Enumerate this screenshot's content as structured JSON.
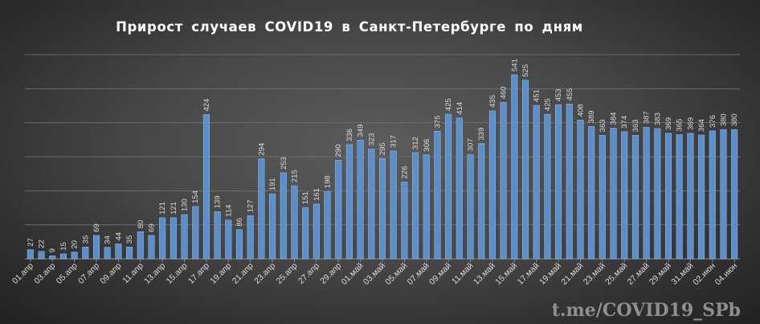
{
  "chart_data": {
    "type": "bar",
    "title": "Прирост случаев COVID19 в Санкт-Петербурге по дням",
    "watermark": "t.me/COVID19_SPb",
    "colors": {
      "bar": "#5b8fcb",
      "background": "#474747",
      "text": "#ffffff"
    },
    "grid": true,
    "ylim": [
      0,
      600
    ],
    "categories": [
      "01.апр",
      "02.апр",
      "03.апр",
      "04.апр",
      "05.апр",
      "06.апр",
      "07.апр",
      "08.апр",
      "09.апр",
      "10.апр",
      "11.апр",
      "12.апр",
      "13.апр",
      "14.апр",
      "15.апр",
      "16.апр",
      "17.апр",
      "18.апр",
      "19.апр",
      "20.апр",
      "21.апр",
      "22.апр",
      "23.апр",
      "24.апр",
      "25.апр",
      "26.апр",
      "27.апр",
      "28.апр",
      "29.апр",
      "30.апр",
      "01.май",
      "02.май",
      "03.май",
      "04.май",
      "05.май",
      "06.май",
      "07.май",
      "08.май",
      "09.май",
      "10.май",
      "11.май",
      "12.май",
      "13.май",
      "14.май",
      "15.май",
      "16.май",
      "17.май",
      "18.май",
      "19.май",
      "20.май",
      "21.май",
      "22.май",
      "23.май",
      "24.май",
      "25.май",
      "26.май",
      "27.май",
      "28.май",
      "29.май",
      "30.май",
      "31.май",
      "01.июн",
      "02.июн",
      "03.июн",
      "04.июн"
    ],
    "tick_labels": [
      "01.апр",
      "03.апр",
      "05.апр",
      "07.апр",
      "09.апр",
      "11.апр",
      "13.апр",
      "15.апр",
      "17.апр",
      "19.апр",
      "21.апр",
      "23.апр",
      "25.апр",
      "27.апр",
      "29.апр",
      "01.май",
      "03.май",
      "05.май",
      "07.май",
      "09.май",
      "11.май",
      "13.май",
      "15.май",
      "17.май",
      "19.май",
      "21.май",
      "23.май",
      "25.май",
      "27.май",
      "29.май",
      "31.май",
      "02.июн",
      "04.июн"
    ],
    "values": [
      27,
      22,
      9,
      15,
      20,
      35,
      69,
      34,
      44,
      35,
      80,
      69,
      121,
      121,
      130,
      154,
      424,
      139,
      114,
      86,
      127,
      294,
      191,
      253,
      215,
      151,
      161,
      198,
      290,
      336,
      349,
      323,
      295,
      317,
      226,
      312,
      306,
      375,
      425,
      414,
      307,
      339,
      435,
      460,
      541,
      525,
      451,
      425,
      453,
      455,
      408,
      389,
      363,
      384,
      374,
      363,
      387,
      383,
      369,
      365,
      369,
      364,
      376,
      380,
      380
    ]
  }
}
